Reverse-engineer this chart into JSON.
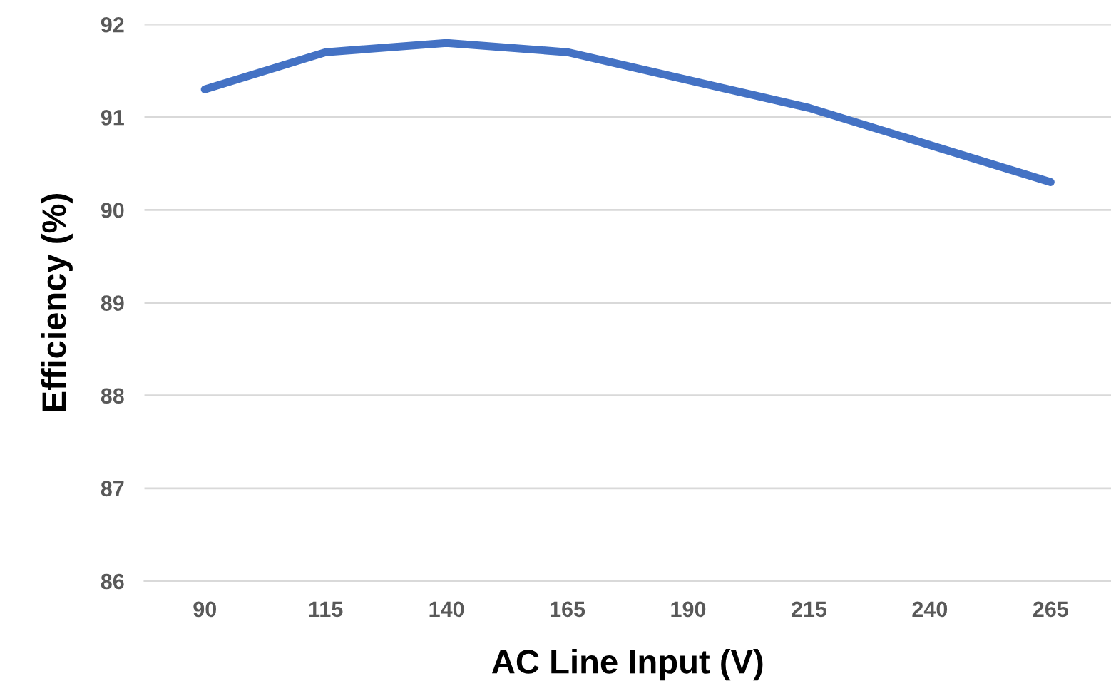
{
  "chart_data": {
    "type": "line",
    "xlabel": "AC Line Input (V)",
    "ylabel": "Efficiency (%)",
    "categories": [
      "90",
      "115",
      "140",
      "165",
      "190",
      "215",
      "240",
      "265"
    ],
    "series": [
      {
        "color": "#4472c4",
        "values": [
          91.3,
          91.7,
          91.8,
          91.7,
          91.4,
          91.1,
          90.7,
          90.3
        ]
      }
    ],
    "ylim": [
      86,
      92
    ],
    "yticks": [
      86,
      87,
      88,
      89,
      90,
      91,
      92
    ],
    "grid": "y",
    "legend": false,
    "marker": "none",
    "line_style": "solid"
  }
}
